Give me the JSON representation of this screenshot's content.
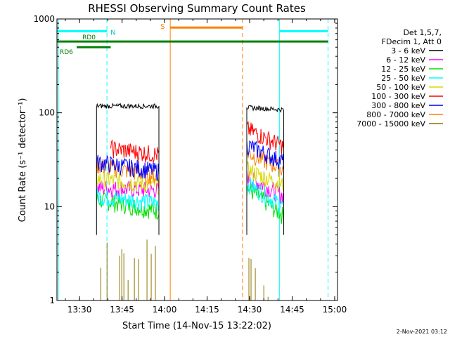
{
  "chart_data": {
    "type": "line",
    "title": "RHESSI Observing Summary Count Rates",
    "xlabel": "Start Time (14-Nov-15 13:22:02)",
    "ylabel": "Count Rate (s⁻¹ detector⁻¹)",
    "footer": "2-Nov-2021 03:12",
    "y_scale": "log",
    "ylim": [
      1,
      1000
    ],
    "xlim": [
      "13:22:02",
      "15:01:00"
    ],
    "x_ticks": [
      "13:30",
      "13:45",
      "14:00",
      "14:15",
      "14:30",
      "14:45",
      "15:00"
    ],
    "y_ticks": [
      "1",
      "10",
      "100",
      "1000"
    ],
    "legend_header": [
      "Det 1,5,7,",
      "FDecim 1, Att 0"
    ],
    "legend_position": "right",
    "series": [
      {
        "name": "3 - 6 keV",
        "color": "#000000",
        "pass1": [
          [
            "13:36",
            118
          ],
          [
            "13:58",
            118
          ]
        ],
        "pass2": [
          [
            "14:29",
            114
          ],
          [
            "14:42",
            108
          ]
        ]
      },
      {
        "name": "6 - 12 keV",
        "color": "#ff00ff",
        "pass1": [
          [
            "13:36",
            16
          ],
          [
            "13:58",
            15
          ]
        ],
        "pass2": [
          [
            "14:29",
            21
          ],
          [
            "14:42",
            13
          ]
        ]
      },
      {
        "name": "12 - 25 keV",
        "color": "#00e000",
        "pass1": [
          [
            "13:36",
            12
          ],
          [
            "13:58",
            9
          ]
        ],
        "pass2": [
          [
            "14:29",
            16
          ],
          [
            "14:42",
            8
          ]
        ]
      },
      {
        "name": "25 - 50 keV",
        "color": "#00ffff",
        "pass1": [
          [
            "13:36",
            13
          ],
          [
            "13:58",
            11
          ]
        ],
        "pass2": [
          [
            "14:29",
            18
          ],
          [
            "14:42",
            10
          ]
        ]
      },
      {
        "name": "50 - 100 keV",
        "color": "#d8d800",
        "pass1": [
          [
            "13:36",
            20
          ],
          [
            "13:58",
            17
          ]
        ],
        "pass2": [
          [
            "14:29",
            25
          ],
          [
            "14:42",
            17
          ]
        ]
      },
      {
        "name": "100 - 300 keV",
        "color": "#ff0000",
        "pass1": [
          [
            "13:41",
            42
          ],
          [
            "13:58",
            36
          ]
        ],
        "pass2": [
          [
            "14:29",
            68
          ],
          [
            "14:42",
            44
          ]
        ]
      },
      {
        "name": "300 - 800 keV",
        "color": "#0000ff",
        "pass1": [
          [
            "13:36",
            30
          ],
          [
            "13:58",
            24
          ]
        ],
        "pass2": [
          [
            "14:29",
            46
          ],
          [
            "14:42",
            30
          ]
        ]
      },
      {
        "name": "800 - 7000 keV",
        "color": "#ff8000",
        "pass1": [
          [
            "13:36",
            28
          ],
          [
            "13:58",
            21
          ]
        ],
        "pass2": [
          [
            "14:29",
            38
          ],
          [
            "14:42",
            25
          ]
        ]
      },
      {
        "name": "7000 - 15000 keV",
        "color": "#8b7500",
        "pass1": [
          [
            "13:36",
            3
          ],
          [
            "13:58",
            2
          ]
        ],
        "pass2": [
          [
            "14:29",
            2
          ],
          [
            "14:42",
            1.5
          ]
        ]
      }
    ],
    "markers": [
      {
        "label": "",
        "color": "#00ffff",
        "style": "solid",
        "time": "13:22:30"
      },
      {
        "label": "N",
        "color": "#00ffff",
        "style": "dashed",
        "time": "13:39:40"
      },
      {
        "label": "S",
        "color": "#ff8000",
        "style": "solid",
        "time": "14:02:00"
      },
      {
        "label": "",
        "color": "#ff8000",
        "style": "dashed",
        "time": "14:27:30"
      },
      {
        "label": "",
        "color": "#00ffff",
        "style": "solid",
        "time": "14:40:30"
      },
      {
        "label": "",
        "color": "#00ffff",
        "style": "dashed",
        "time": "14:57:40"
      }
    ],
    "bars": [
      {
        "label": "",
        "color": "#00ffff",
        "y": 740,
        "start": "13:22:02",
        "end": "13:39:40"
      },
      {
        "label": "",
        "color": "#00ffff",
        "y": 740,
        "start": "14:40:30",
        "end": "14:57:40"
      },
      {
        "label": "S",
        "color": "#ff8000",
        "y": 810,
        "start": "14:02:00",
        "end": "14:27:30"
      },
      {
        "label": "RD0",
        "color": "#008000",
        "y": 575,
        "start": "13:22:02",
        "end": "14:57:40"
      },
      {
        "label": "RD6",
        "color": "#008000",
        "y": 500,
        "start": "13:29:00",
        "end": "13:41:00"
      }
    ],
    "text_labels": {
      "N": "N",
      "S": "S",
      "RD0": "RD0",
      "RD6": "RD6"
    }
  }
}
